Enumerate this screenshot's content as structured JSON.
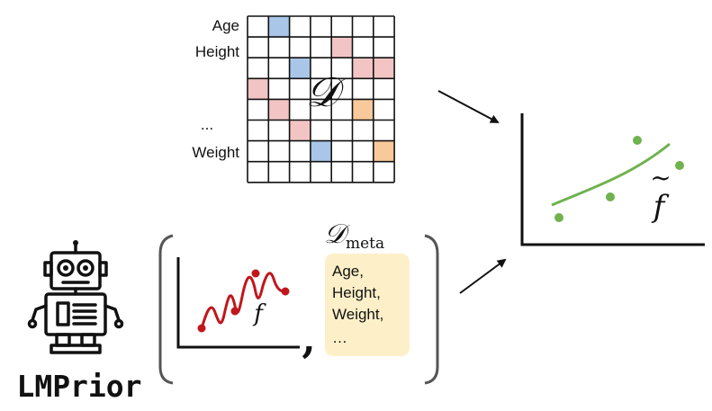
{
  "matrix": {
    "row_labels": [
      "Age",
      "Height",
      "...",
      "Weight"
    ],
    "dataset_symbol": "𝒟",
    "rows": 8,
    "cols": 7,
    "colored_cells": [
      {
        "row": 0,
        "col": 1,
        "color": "blue"
      },
      {
        "row": 1,
        "col": 4,
        "color": "pink"
      },
      {
        "row": 2,
        "col": 2,
        "color": "blue"
      },
      {
        "row": 2,
        "col": 5,
        "color": "pink"
      },
      {
        "row": 2,
        "col": 6,
        "color": "pink"
      },
      {
        "row": 3,
        "col": 0,
        "color": "pink"
      },
      {
        "row": 4,
        "col": 1,
        "color": "pink"
      },
      {
        "row": 4,
        "col": 5,
        "color": "orange"
      },
      {
        "row": 5,
        "col": 2,
        "color": "pink"
      },
      {
        "row": 6,
        "col": 3,
        "color": "blue"
      },
      {
        "row": 6,
        "col": 6,
        "color": "orange"
      }
    ]
  },
  "colors": {
    "blue": "#a9c6e8",
    "pink": "#f2c4c4",
    "orange": "#f8c99a",
    "green": "#6fb24f",
    "red": "#c0161c",
    "meta_box": "#fdf0c8",
    "bracket": "#555555"
  },
  "prior": {
    "function_label": "f",
    "comma": ","
  },
  "meta": {
    "symbol": "𝒟",
    "subscript": "meta",
    "items": [
      "Age,",
      "Height,",
      "Weight,",
      "…"
    ]
  },
  "result": {
    "function_label": "f̃",
    "tilde": "~",
    "letter": "f"
  },
  "robot": {
    "name": "LMPrior"
  }
}
